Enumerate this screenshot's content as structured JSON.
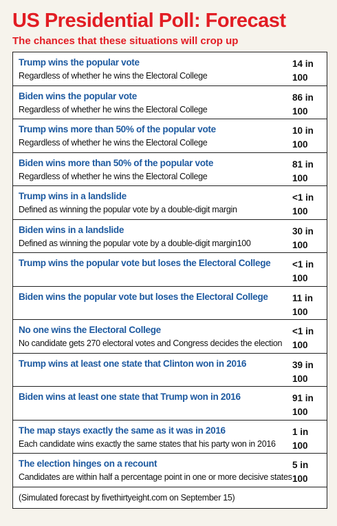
{
  "header": {
    "title": "US Presidential Poll: Forecast",
    "subtitle": "The chances that these situations will crop up"
  },
  "rows": [
    {
      "heading": "Trump wins the popular vote",
      "description": "Regardless of whether he wins the Electoral College",
      "chance_top": "14 in",
      "chance_bottom": "100"
    },
    {
      "heading": "Biden wins the popular vote",
      "description": "Regardless of whether he wins the Electoral College",
      "chance_top": "86 in",
      "chance_bottom": "100"
    },
    {
      "heading": "Trump wins more than 50% of the popular vote",
      "description": "Regardless of whether he wins the Electoral College",
      "chance_top": "10 in",
      "chance_bottom": "100"
    },
    {
      "heading": "Biden wins more than 50% of the popular vote",
      "description": "Regardless of whether he wins the Electoral College",
      "chance_top": "81 in",
      "chance_bottom": "100"
    },
    {
      "heading": "Trump wins in a landslide",
      "description": "Defined as winning the popular vote by a double-digit margin",
      "chance_top": "<1 in",
      "chance_bottom": "100"
    },
    {
      "heading": "Biden wins in a landslide",
      "description": "Defined as winning the popular vote by a double-digit margin100",
      "chance_top": "30 in",
      "chance_bottom": "100"
    },
    {
      "heading": "Trump wins the popular vote but loses the Electoral College",
      "description": "",
      "chance_top": "<1 in",
      "chance_bottom": "100"
    },
    {
      "heading": "Biden wins the popular vote but loses the Electoral College",
      "description": "",
      "chance_top": "11 in",
      "chance_bottom": "100"
    },
    {
      "heading": "No one wins the Electoral College",
      "description": "No candidate gets 270 electoral votes and Congress decides the election",
      "chance_top": "<1 in",
      "chance_bottom": "100"
    },
    {
      "heading": "Trump wins at least one state that Clinton won in 2016",
      "description": "",
      "chance_top": "39 in",
      "chance_bottom": "100"
    },
    {
      "heading": "Biden wins at least one state that Trump won in 2016",
      "description": "",
      "chance_top": "91 in",
      "chance_bottom": "100"
    },
    {
      "heading": "The map stays exactly the same as it was in 2016",
      "description": "Each candidate wins exactly the same states that his party won in 2016",
      "chance_top": "1 in",
      "chance_bottom": "100"
    },
    {
      "heading": "The election hinges on a recount",
      "description": "Candidates are within half a percentage point in one or more decisive states",
      "chance_top": "5 in",
      "chance_bottom": "100"
    }
  ],
  "footer": {
    "source_note": "(Simulated forecast by fivethirtyeight.com on September 15)"
  },
  "colors": {
    "title": "#e21d24",
    "heading": "#1e5aa0",
    "background": "#f6f3ec"
  }
}
